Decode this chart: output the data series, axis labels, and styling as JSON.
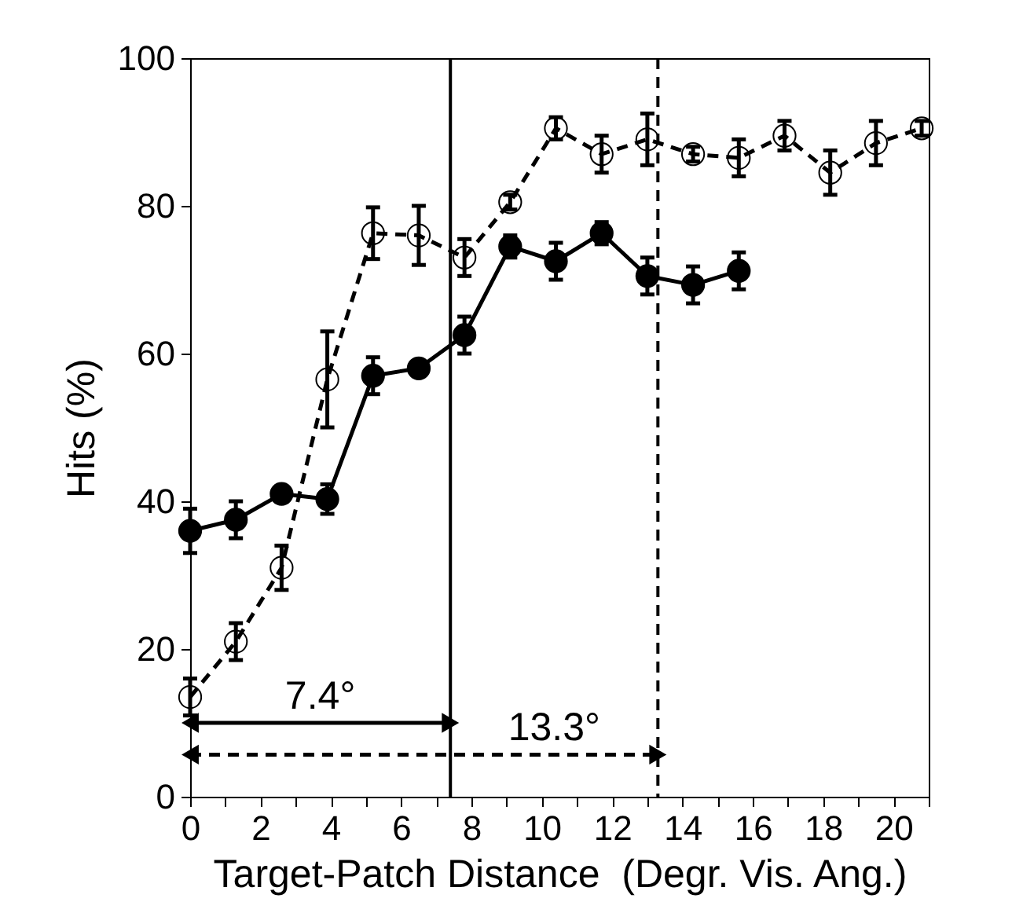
{
  "chart_data": {
    "type": "line",
    "xlabel": "Target-Patch Distance  (Degr. Vis. Ang.)",
    "ylabel": "Hits (%)",
    "xlim": [
      0,
      21
    ],
    "ylim": [
      0,
      100
    ],
    "xticks": [
      0,
      {
        "value": 1,
        "label": null
      },
      2,
      {
        "value": 3,
        "label": null
      },
      4,
      {
        "value": 5,
        "label": null
      },
      6,
      {
        "value": 7,
        "label": null
      },
      8,
      {
        "value": 9,
        "label": null
      },
      10,
      {
        "value": 11,
        "label": null
      },
      12,
      {
        "value": 13,
        "label": null
      },
      14,
      {
        "value": 15,
        "label": null
      },
      16,
      {
        "value": 17,
        "label": null
      },
      18,
      {
        "value": 19,
        "label": null
      },
      20,
      {
        "value": 21,
        "label": null
      }
    ],
    "yticks": [
      0,
      20,
      40,
      60,
      80,
      100
    ],
    "grid": false,
    "marker": "circle",
    "series": [
      {
        "color": "#000000",
        "line_style": "solid",
        "x": [
          0,
          1.3,
          2.6,
          3.9,
          5.2,
          6.5,
          7.8,
          9.1,
          10.4,
          11.7,
          13,
          14.3,
          15.6
        ],
        "values": [
          36,
          37.5,
          41,
          40.3,
          57,
          58,
          62.5,
          74.5,
          72.5,
          76.3,
          70.5,
          69.3,
          71.2
        ],
        "errors": [
          3,
          2.5,
          1,
          2,
          2.5,
          1,
          2.5,
          1.5,
          2.5,
          1.5,
          2.5,
          2.5,
          2.5
        ]
      },
      {
        "color": "#000000",
        "line_style": "dashed",
        "x": [
          0,
          1.3,
          2.6,
          3.9,
          5.2,
          6.5,
          7.8,
          9.1,
          10.4,
          11.7,
          13,
          14.3,
          15.6,
          16.9,
          18.2,
          19.5,
          20.8
        ],
        "values": [
          13.5,
          21,
          31,
          56.5,
          76.3,
          76,
          73,
          80.5,
          90.5,
          87,
          89,
          87,
          86.5,
          89.5,
          84.5,
          88.5,
          90.5
        ],
        "errors": [
          2.5,
          2.5,
          3,
          6.5,
          3.5,
          4,
          2.5,
          1,
          1.5,
          2.5,
          3.5,
          1,
          2.5,
          2,
          3,
          3,
          1
        ]
      }
    ],
    "ref_lines": [
      {
        "axis": "x",
        "value": 7.4,
        "label": "7.4°",
        "line_style": "solid",
        "color": "#000000"
      },
      {
        "axis": "x",
        "value": 13.3,
        "label": "13.3°",
        "line_style": "dashed",
        "color": "#000000"
      }
    ]
  }
}
